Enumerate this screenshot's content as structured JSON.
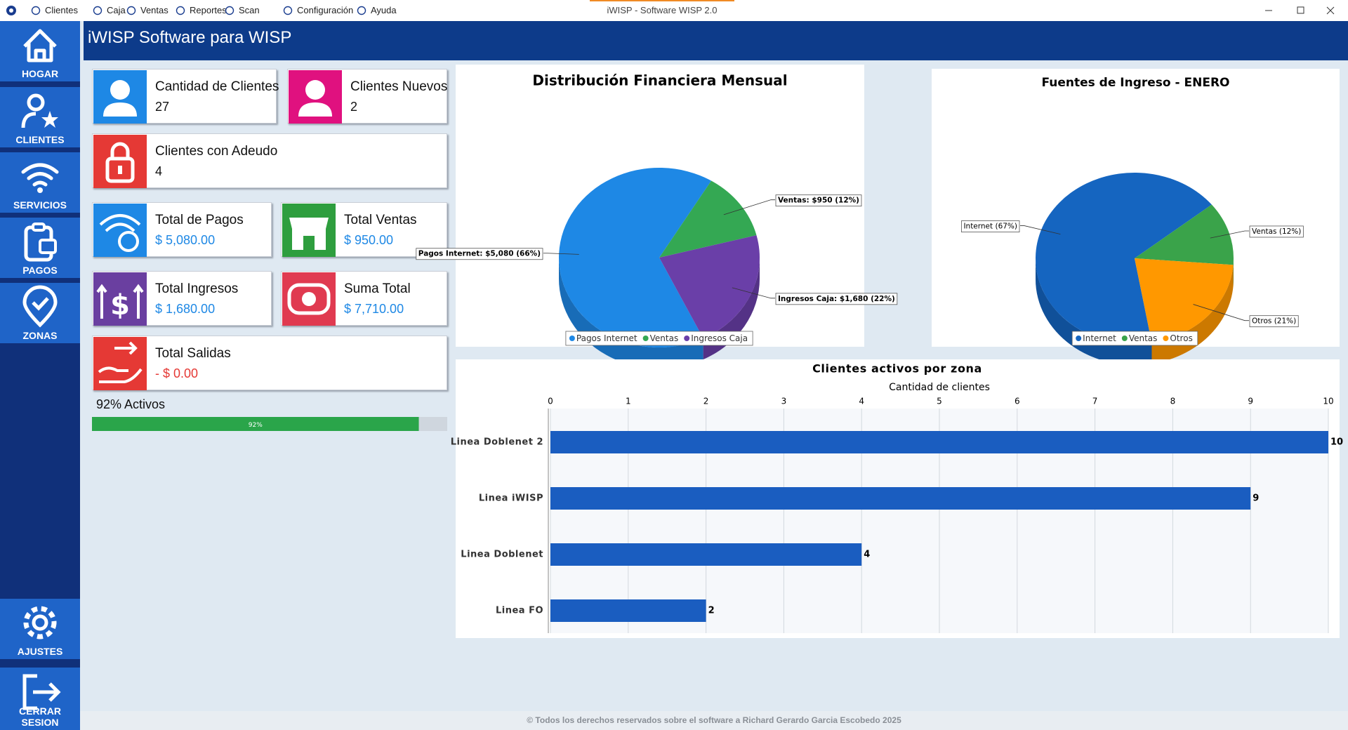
{
  "window": {
    "title": "iWISP - Software WISP 2.0"
  },
  "menu": [
    "Clientes",
    "Caja",
    "Ventas",
    "Reportes",
    "Scan",
    "Configuración",
    "Ayuda"
  ],
  "sidebar": [
    "HOGAR",
    "CLIENTES",
    "SERVICIOS",
    "PAGOS",
    "ZONAS",
    "AJUSTES",
    "CERRAR SESION"
  ],
  "header": {
    "title": "iWISP Software para WISP"
  },
  "cards": [
    {
      "title": "Cantidad de Clientes",
      "value": "27"
    },
    {
      "title": "Clientes Nuevos",
      "value": "2"
    },
    {
      "title": "Clientes con Adeudo",
      "value": "4"
    },
    {
      "title": "Total de Pagos",
      "value": "$ 5,080.00"
    },
    {
      "title": "Total Ventas",
      "value": "$ 950.00"
    },
    {
      "title": "Total Ingresos",
      "value": "$ 1,680.00"
    },
    {
      "title": "Suma Total",
      "value": "$ 7,710.00"
    },
    {
      "title": "Total Salidas",
      "value": "- $ 0.00"
    }
  ],
  "progress": {
    "label": "92% Activos",
    "value": 92,
    "value_label": "92%"
  },
  "chart_data": [
    {
      "type": "pie",
      "title": "Distribución Financiera Mensual",
      "categories": [
        "Pagos Internet",
        "Ventas",
        "Ingresos Caja"
      ],
      "values": [
        5080,
        950,
        1680
      ],
      "value_labels": [
        "Pagos Internet: $5,080 (66%)",
        "Ventas: $950 (12%)",
        "Ingresos Caja: $1,680 (22%)"
      ],
      "colors": [
        "#1e88e5",
        "#34a853",
        "#6a3fa8"
      ],
      "legend": "bottom"
    },
    {
      "type": "pie",
      "title": "Fuentes de Ingreso - ENERO",
      "categories": [
        "Internet",
        "Ventas",
        "Otros"
      ],
      "values": [
        67,
        12,
        21
      ],
      "value_labels": [
        "Internet (67%)",
        "Ventas (12%)",
        "Otros (21%)"
      ],
      "colors": [
        "#1565c0",
        "#3aa34a",
        "#ff9800"
      ],
      "legend": "bottom"
    },
    {
      "type": "bar",
      "orientation": "horizontal",
      "title": "Clientes activos por zona",
      "x_label": "Cantidad de clientes",
      "categories": [
        "Linea Doblenet 2",
        "Linea iWISP",
        "Linea Doblenet",
        "Linea FO"
      ],
      "values": [
        10,
        9,
        4,
        2
      ],
      "color": "#1a5dc0",
      "xlim": [
        0,
        10
      ],
      "xticks": [
        0,
        1,
        2,
        3,
        4,
        5,
        6,
        7,
        8,
        9,
        10
      ],
      "grid": true
    }
  ],
  "footer": "© Todos los derechos reservados sobre el software a Richard Gerardo Garcia Escobedo 2025"
}
